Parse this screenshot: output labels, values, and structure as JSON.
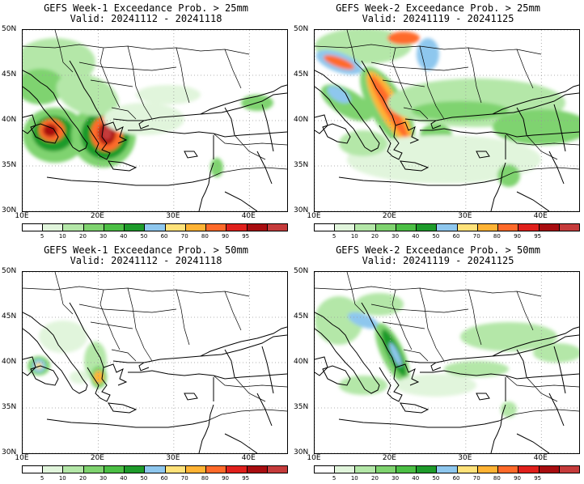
{
  "colors": [
    "#ffffff",
    "#e1f5dc",
    "#b4e7a8",
    "#7fd36f",
    "#4cbf45",
    "#1e9b2b",
    "#8ec7ee",
    "#ffe27a",
    "#ffb334",
    "#ff6a2a",
    "#e0201c",
    "#a80d10",
    "#c53b3b"
  ],
  "colorbar_labels": [
    "5",
    "10",
    "20",
    "30",
    "40",
    "50",
    "60",
    "70",
    "80",
    "90",
    "95"
  ],
  "lat_labels": [
    "50N",
    "45N",
    "40N",
    "35N",
    "30N"
  ],
  "lon_labels": [
    "10E",
    "20E",
    "30E",
    "40E"
  ],
  "panels": [
    {
      "title": "GEFS Week-1 Exceedance Prob. > 25mm",
      "valid": "Valid: 20241112 - 20241118"
    },
    {
      "title": "GEFS Week-2 Exceedance Prob. > 25mm",
      "valid": "Valid: 20241119 - 20241125"
    },
    {
      "title": "GEFS Week-1 Exceedance Prob. > 50mm",
      "valid": "Valid: 20241112 - 20241118"
    },
    {
      "title": "GEFS Week-2 Exceedance Prob. > 50mm",
      "valid": "Valid: 20241119 - 20241125"
    }
  ]
}
